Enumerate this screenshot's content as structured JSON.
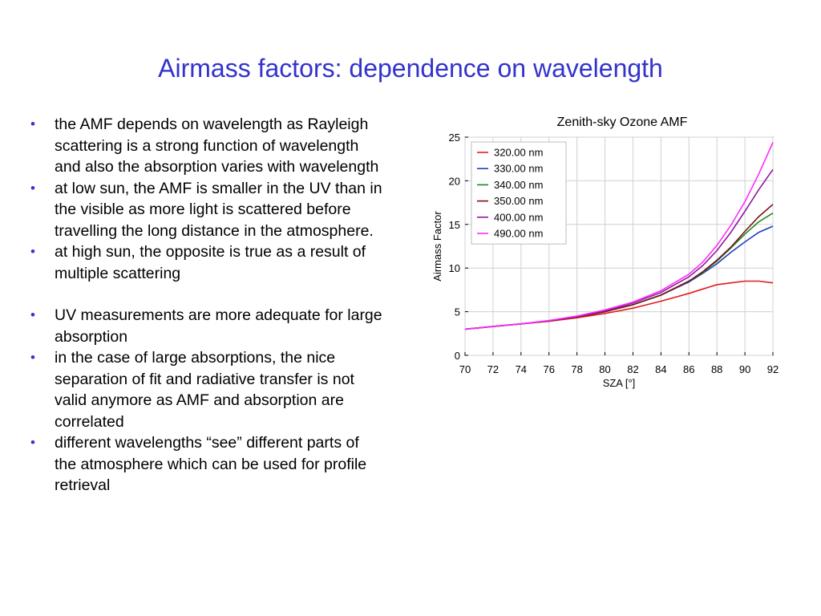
{
  "slide": {
    "title": "Airmass factors: dependence on wavelength",
    "bullets": [
      "the AMF depends on wavelength as Rayleigh scattering is a strong function of wavelength and also the absorption varies with wavelength",
      "at low sun, the AMF is smaller in the UV than in the visible as more light is scattered before travelling the long distance in the atmosphere.",
      "at high sun, the opposite is true as a result of multiple scattering",
      "UV measurements are more adequate for large absorption",
      "in the case of large absorptions, the nice separation of fit and radiative transfer is not valid anymore as AMF and absorption are correlated",
      "different wavelengths “see” different parts of the atmosphere which can be used for profile retrieval"
    ],
    "bullet_color": "#3333cc",
    "title_color": "#3333cc"
  },
  "chart_data": {
    "type": "line",
    "title": "Zenith-sky Ozone AMF",
    "xlabel": "SZA [°]",
    "ylabel": "Airmass Factor",
    "xlim": [
      70,
      92
    ],
    "ylim": [
      0,
      25
    ],
    "xticks": [
      70,
      72,
      74,
      76,
      78,
      80,
      82,
      84,
      86,
      88,
      90,
      92
    ],
    "yticks": [
      0,
      5,
      10,
      15,
      20,
      25
    ],
    "grid": true,
    "legend_position": "top-left",
    "x": [
      70,
      72,
      74,
      76,
      78,
      80,
      82,
      84,
      86,
      87,
      88,
      89,
      90,
      91,
      92
    ],
    "series": [
      {
        "name": "320.00 nm",
        "color": "#e41a1c",
        "values": [
          3.0,
          3.3,
          3.6,
          3.9,
          4.3,
          4.8,
          5.4,
          6.2,
          7.1,
          7.6,
          8.1,
          8.3,
          8.5,
          8.5,
          8.3
        ]
      },
      {
        "name": "330.00 nm",
        "color": "#1f3fbf",
        "values": [
          3.0,
          3.3,
          3.6,
          3.95,
          4.4,
          5.0,
          5.8,
          6.9,
          8.4,
          9.4,
          10.5,
          11.8,
          13.0,
          14.1,
          14.8
        ]
      },
      {
        "name": "340.00 nm",
        "color": "#1a8a1a",
        "values": [
          3.0,
          3.3,
          3.6,
          3.95,
          4.4,
          5.0,
          5.8,
          6.9,
          8.5,
          9.5,
          10.8,
          12.3,
          13.9,
          15.3,
          16.3
        ]
      },
      {
        "name": "350.00 nm",
        "color": "#7a1018",
        "values": [
          3.0,
          3.3,
          3.6,
          3.95,
          4.4,
          5.0,
          5.8,
          6.9,
          8.5,
          9.6,
          10.9,
          12.4,
          14.2,
          15.9,
          17.3
        ]
      },
      {
        "name": "400.00 nm",
        "color": "#8e1a9a",
        "values": [
          3.0,
          3.3,
          3.6,
          3.95,
          4.45,
          5.1,
          6.0,
          7.2,
          9.0,
          10.3,
          12.0,
          14.1,
          16.5,
          19.0,
          21.3
        ]
      },
      {
        "name": "490.00 nm",
        "color": "#ff2bff",
        "values": [
          3.0,
          3.3,
          3.6,
          4.0,
          4.5,
          5.2,
          6.1,
          7.4,
          9.3,
          10.7,
          12.6,
          14.9,
          17.6,
          20.8,
          24.4
        ]
      }
    ]
  }
}
